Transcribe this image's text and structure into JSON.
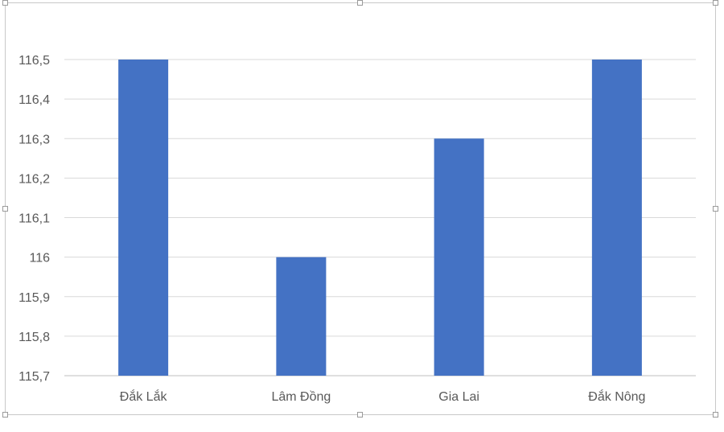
{
  "chart_data": {
    "type": "bar",
    "categories": [
      "Đắk Lắk",
      "Lâm Đồng",
      "Gia Lai",
      "Đắk Nông"
    ],
    "series": [
      {
        "values": [
          116.5,
          116.0,
          116.3,
          116.5
        ]
      }
    ],
    "title": "",
    "xlabel": "",
    "ylabel": "",
    "ylim": [
      115.7,
      116.5
    ],
    "yticks": [
      115.7,
      115.8,
      115.9,
      116.0,
      116.1,
      116.2,
      116.3,
      116.4,
      116.5
    ],
    "ytick_labels": [
      "115,7",
      "115,8",
      "115,9",
      "116",
      "116,1",
      "116,2",
      "116,3",
      "116,4",
      "116,5"
    ],
    "grid": true,
    "legend": "none",
    "bar_color": "#4472C4",
    "grid_color": "#d9d9d9",
    "axis_color": "#bfbfbf"
  }
}
